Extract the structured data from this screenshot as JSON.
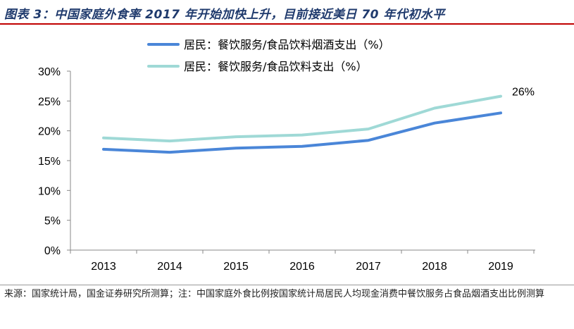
{
  "page": {
    "title": "图表 3：中国家庭外食率 2017 年开始加快上升，目前接近美日 70 年代初水平",
    "source": "来源：国家统计局，国金证券研究所测算；注：中国家庭外食比例按国家统计局居民人均现金消费中餐饮服务占食品烟酒支出比例测算"
  },
  "chart_data": {
    "type": "line",
    "x": [
      "2013",
      "2014",
      "2015",
      "2016",
      "2017",
      "2018",
      "2019"
    ],
    "y_ticks": [
      "0%",
      "5%",
      "10%",
      "15%",
      "20%",
      "25%",
      "30%"
    ],
    "ylim": [
      0,
      30
    ],
    "grid": false,
    "legend_position": "top",
    "series": [
      {
        "name": "居民：餐饮服务/食品饮料烟酒支出（%）",
        "values": [
          16.9,
          16.4,
          17.1,
          17.4,
          18.4,
          21.3,
          23.0
        ],
        "color": "#4a86d8"
      },
      {
        "name": "居民：餐饮服务/食品饮料支出（%）",
        "values": [
          18.8,
          18.3,
          19.0,
          19.3,
          20.3,
          23.8,
          25.8
        ],
        "color": "#9fd9d6"
      }
    ],
    "annotations": [
      {
        "text": "26%",
        "series": 1,
        "index": 6
      }
    ]
  }
}
